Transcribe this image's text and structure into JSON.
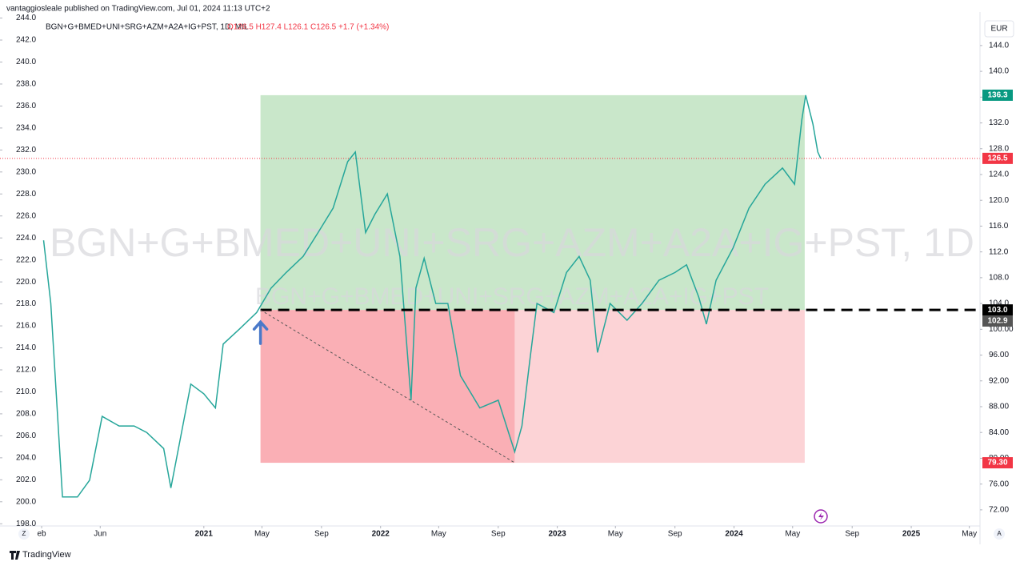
{
  "header": {
    "publisher": "vantaggiosleale published on TradingView.com, Jul 01, 2024 11:13 UTC+2"
  },
  "legend": {
    "symbol": "BGN+G+BMED+UNI+SRG+AZM+A2A+IG+PST, 1D, MIL",
    "ohlc": "O126.5 H127.4 L126.1 C126.5 +1.7 (+1.34%)"
  },
  "watermark": {
    "main": "BGN+G+BMED+UNI+SRG+AZM+A2A+IG+PST, 1D",
    "sub": "BGN+G+BMED+UNI+SRG+AZM+A2A+IG+PST"
  },
  "currency": "EUR",
  "footer": "TradingView",
  "chart_data": {
    "type": "line",
    "x": [
      "2020-02-05",
      "2020-02-20",
      "2020-03-15",
      "2020-04-15",
      "2020-05-10",
      "2020-06-05",
      "2020-07-10",
      "2020-08-10",
      "2020-09-05",
      "2020-10-10",
      "2020-10-25",
      "2020-12-05",
      "2021-01-01",
      "2021-01-25",
      "2021-02-10",
      "2021-03-15",
      "2021-04-20",
      "2021-05-20",
      "2021-06-20",
      "2021-07-25",
      "2021-08-25",
      "2021-09-25",
      "2021-10-25",
      "2021-11-10",
      "2021-12-01",
      "2021-12-20",
      "2022-01-15",
      "2022-02-10",
      "2022-03-05",
      "2022-03-15",
      "2022-04-01",
      "2022-04-25",
      "2022-05-20",
      "2022-06-15",
      "2022-07-25",
      "2022-09-01",
      "2022-10-05",
      "2022-10-20",
      "2022-11-05",
      "2022-11-20",
      "2022-12-25",
      "2023-01-20",
      "2023-02-15",
      "2023-03-10",
      "2023-03-25",
      "2023-04-20",
      "2023-05-25",
      "2023-06-25",
      "2023-07-30",
      "2023-09-01",
      "2023-09-25",
      "2023-10-20",
      "2023-11-05",
      "2023-11-25",
      "2023-12-30",
      "2024-02-01",
      "2024-03-05",
      "2024-04-10",
      "2024-05-05",
      "2024-05-20",
      "2024-05-28",
      "2024-06-12",
      "2024-06-22",
      "2024-06-28"
    ],
    "series": [
      {
        "color": "#26a69a",
        "values": [
          113.8,
          104,
          74,
          74,
          76.6,
          86.5,
          85,
          85,
          84,
          81.5,
          75.4,
          91.5,
          90,
          87.8,
          97.7,
          100,
          102.6,
          106.4,
          108.8,
          111.3,
          115,
          118.8,
          126,
          127.5,
          115,
          117.8,
          121,
          111.3,
          89,
          106.4,
          111,
          104,
          104,
          92.8,
          87.8,
          89,
          81,
          85,
          95,
          104,
          102.6,
          108.8,
          111.3,
          107.6,
          96.4,
          104,
          101.4,
          104,
          107.6,
          108.8,
          110,
          105,
          100.8,
          107.6,
          112.6,
          118.8,
          122.5,
          125,
          122.5,
          132.5,
          136.3,
          131.8,
          127.5,
          126.5
        ]
      }
    ],
    "xlim": [
      "2019-11-07",
      "2025-05-23"
    ],
    "xticks": [
      {
        "value": "2020-02-01",
        "label": "eb"
      },
      {
        "value": "2020-06-01",
        "label": "Jun"
      },
      {
        "value": "2021-01-01",
        "label": "2021"
      },
      {
        "value": "2021-05-01",
        "label": "May"
      },
      {
        "value": "2021-09-01",
        "label": "Sep"
      },
      {
        "value": "2022-01-01",
        "label": "2022"
      },
      {
        "value": "2022-05-01",
        "label": "May"
      },
      {
        "value": "2022-09-01",
        "label": "Sep"
      },
      {
        "value": "2023-01-01",
        "label": "2023"
      },
      {
        "value": "2023-05-01",
        "label": "May"
      },
      {
        "value": "2023-09-01",
        "label": "Sep"
      },
      {
        "value": "2024-01-01",
        "label": "2024"
      },
      {
        "value": "2024-05-01",
        "label": "May"
      },
      {
        "value": "2024-09-01",
        "label": "Sep"
      },
      {
        "value": "2025-01-01",
        "label": "2025"
      },
      {
        "value": "2025-05-01",
        "label": "May"
      }
    ],
    "ylim": [
      69.5,
      149.2
    ],
    "yticks": [
      {
        "value": 72,
        "label": "72.00"
      },
      {
        "value": 76,
        "label": "76.00"
      },
      {
        "value": 80,
        "label": "80.00"
      },
      {
        "value": 84,
        "label": "84.00"
      },
      {
        "value": 88,
        "label": "88.00"
      },
      {
        "value": 92,
        "label": "92.00"
      },
      {
        "value": 96,
        "label": "96.00"
      },
      {
        "value": 100,
        "label": "100.00"
      },
      {
        "value": 104,
        "label": "104.0"
      },
      {
        "value": 108,
        "label": "108.0"
      },
      {
        "value": 112,
        "label": "112.0"
      },
      {
        "value": 116,
        "label": "116.0"
      },
      {
        "value": 120,
        "label": "120.0"
      },
      {
        "value": 124,
        "label": "124.0"
      },
      {
        "value": 128,
        "label": "128.0"
      },
      {
        "value": 132,
        "label": "132.0"
      },
      {
        "value": 136,
        "label": "136.0"
      },
      {
        "value": 140,
        "label": "140.0"
      },
      {
        "value": 144,
        "label": "144.0"
      }
    ],
    "y2lim": [
      197.8,
      244.55
    ],
    "y2ticks": [
      {
        "value": 198,
        "label": "198.0"
      },
      {
        "value": 200,
        "label": "200.0"
      },
      {
        "value": 202,
        "label": "202.0"
      },
      {
        "value": 204,
        "label": "204.0"
      },
      {
        "value": 206,
        "label": "206.0"
      },
      {
        "value": 208,
        "label": "208.0"
      },
      {
        "value": 210,
        "label": "210.0"
      },
      {
        "value": 212,
        "label": "212.0"
      },
      {
        "value": 214,
        "label": "214.0"
      },
      {
        "value": 216,
        "label": "216.0"
      },
      {
        "value": 218,
        "label": "218.0"
      },
      {
        "value": 220,
        "label": "220.0"
      },
      {
        "value": 222,
        "label": "222.0"
      },
      {
        "value": 224,
        "label": "224.0"
      },
      {
        "value": 226,
        "label": "226.0"
      },
      {
        "value": 228,
        "label": "228.0"
      },
      {
        "value": 230,
        "label": "230.0"
      },
      {
        "value": 232,
        "label": "232.0"
      },
      {
        "value": 234,
        "label": "234.0"
      },
      {
        "value": 236,
        "label": "236.0"
      },
      {
        "value": 238,
        "label": "238.0"
      },
      {
        "value": 240,
        "label": "240.0"
      },
      {
        "value": 242,
        "label": "242.0"
      },
      {
        "value": 244,
        "label": "244.0"
      }
    ],
    "last_price": {
      "value": 126.5,
      "color": "#f23645"
    },
    "position": {
      "start": "2021-04-28",
      "end": "2024-05-26",
      "stop_hit": "2022-10-05",
      "entry": {
        "value": 103.0,
        "label": "103.0"
      },
      "target": 136.3,
      "stop": {
        "value": 79.3,
        "label": "79.30"
      }
    },
    "marker_price": 102.9
  }
}
